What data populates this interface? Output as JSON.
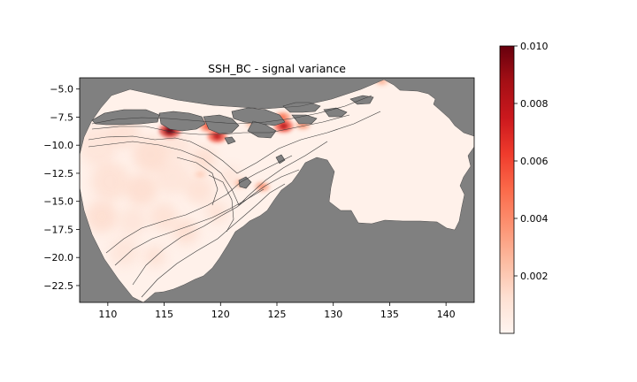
{
  "chart_data": {
    "type": "heatmap",
    "title": "SSH_BC - signal variance",
    "xlabel": "",
    "ylabel": "",
    "xlim": [
      107.5,
      142.5
    ],
    "ylim": [
      -24.0,
      -4.0
    ],
    "x_ticks": [
      110,
      115,
      120,
      125,
      130,
      135,
      140
    ],
    "x_tick_labels": [
      "110",
      "115",
      "120",
      "125",
      "130",
      "135",
      "140"
    ],
    "y_ticks": [
      -5.0,
      -7.5,
      -10.0,
      -12.5,
      -15.0,
      -17.5,
      -20.0,
      -22.5
    ],
    "y_tick_labels": [
      "−5.0",
      "−7.5",
      "−10.0",
      "−12.5",
      "−15.0",
      "−17.5",
      "−20.0",
      "−22.5"
    ],
    "colorbar": {
      "colormap": "Reds",
      "min": 0.0,
      "max": 0.01,
      "ticks": [
        0.002,
        0.004,
        0.006,
        0.008,
        0.01
      ],
      "tick_labels": [
        "0.002",
        "0.004",
        "0.006",
        "0.008",
        "0.010"
      ]
    },
    "land_color": "#808080",
    "contour_color": "#3a3a3a",
    "hotspots": [
      {
        "lon": 115.5,
        "lat": -8.7,
        "value": 0.01
      },
      {
        "lon": 118.9,
        "lat": -8.3,
        "value": 0.006
      },
      {
        "lon": 119.7,
        "lat": -9.2,
        "value": 0.008
      },
      {
        "lon": 125.5,
        "lat": -7.5,
        "value": 0.005
      },
      {
        "lon": 125.6,
        "lat": -8.3,
        "value": 0.008
      },
      {
        "lon": 127.3,
        "lat": -8.2,
        "value": 0.004
      },
      {
        "lon": 123.7,
        "lat": -13.7,
        "value": 0.004
      },
      {
        "lon": 118.2,
        "lat": -12.6,
        "value": 0.002
      },
      {
        "lon": 121.8,
        "lat": -13.4,
        "value": 0.003
      },
      {
        "lon": 134.3,
        "lat": -4.3,
        "value": 0.003
      },
      {
        "lon": 122.8,
        "lat": -8.1,
        "value": 0.003
      }
    ]
  }
}
